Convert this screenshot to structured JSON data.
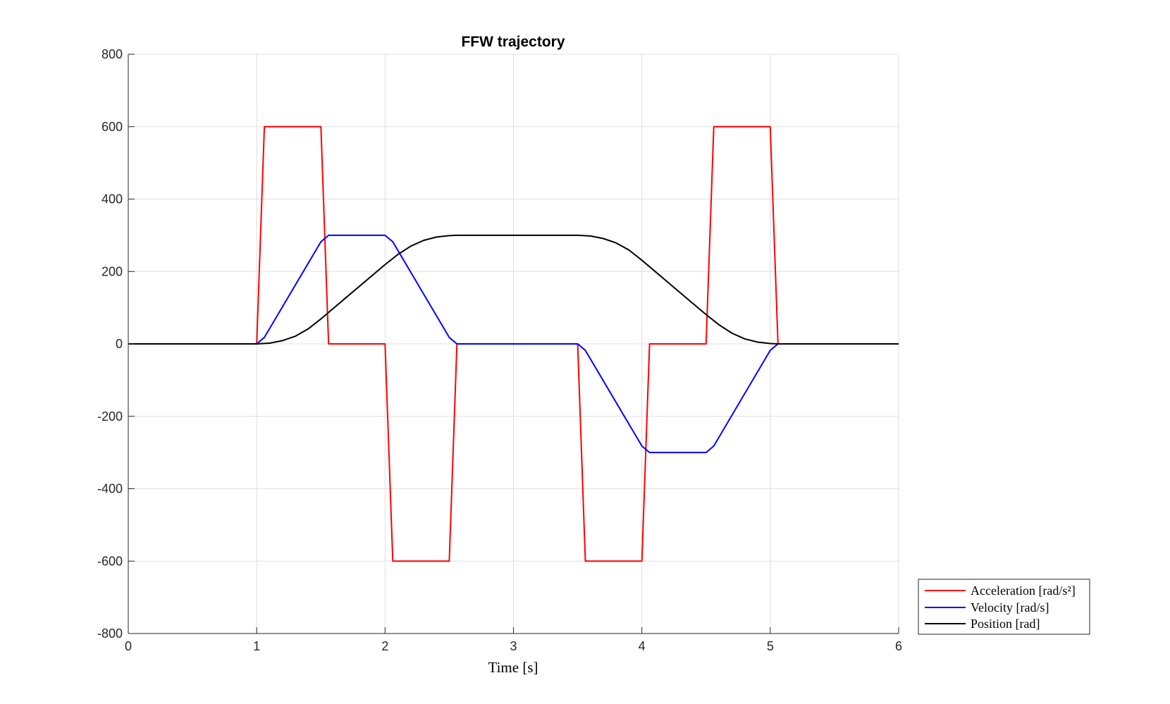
{
  "chart_data": {
    "type": "line",
    "title": "FFW trajectory",
    "xlabel": "Time [s]",
    "ylabel": "",
    "xlim": [
      0,
      6
    ],
    "ylim": [
      -800,
      800
    ],
    "xticks": [
      0,
      1,
      2,
      3,
      4,
      5,
      6
    ],
    "yticks": [
      -800,
      -600,
      -400,
      -200,
      0,
      200,
      400,
      600,
      800
    ],
    "grid": true,
    "legend_position": "bottom-right-outside",
    "series": [
      {
        "key": "acceleration",
        "name": "Acceleration [rad/s²]",
        "color": "#ff0000",
        "x": [
          0,
          1.0,
          1.06,
          1.5,
          1.56,
          2.0,
          2.06,
          2.5,
          2.56,
          3.5,
          3.56,
          4.0,
          4.06,
          4.5,
          4.56,
          5.0,
          5.06,
          6.0
        ],
        "y": [
          0,
          0,
          600,
          600,
          0,
          0,
          -600,
          -600,
          0,
          0,
          -600,
          -600,
          0,
          0,
          600,
          600,
          0,
          0
        ]
      },
      {
        "key": "velocity",
        "name": "Velocity [rad/s]",
        "color": "#0000ff",
        "x": [
          0,
          1.0,
          1.06,
          1.5,
          1.56,
          2.0,
          2.06,
          2.5,
          2.56,
          3.5,
          3.56,
          4.0,
          4.06,
          4.5,
          4.56,
          5.0,
          5.06,
          6.0
        ],
        "y": [
          0,
          0,
          18,
          282,
          300,
          300,
          282,
          18,
          0,
          0,
          -18,
          -282,
          -300,
          -300,
          -282,
          -18,
          0,
          0
        ]
      },
      {
        "key": "position",
        "name": "Position [rad]",
        "color": "#000000",
        "x": [
          0,
          1.0,
          1.1,
          1.2,
          1.3,
          1.4,
          1.5,
          1.6,
          1.7,
          1.8,
          1.9,
          2.0,
          2.1,
          2.2,
          2.3,
          2.4,
          2.5,
          2.56,
          3.5,
          3.6,
          3.7,
          3.8,
          3.9,
          4.0,
          4.1,
          4.2,
          4.3,
          4.4,
          4.5,
          4.6,
          4.7,
          4.8,
          4.9,
          5.0,
          5.06,
          6.0
        ],
        "y": [
          0,
          0,
          2,
          9,
          21,
          41,
          69,
          99,
          129,
          159,
          189,
          219,
          247,
          270,
          286,
          295,
          299,
          300,
          300,
          298,
          291,
          279,
          259,
          231,
          201,
          171,
          141,
          111,
          81,
          53,
          30,
          14,
          5,
          1,
          0,
          0
        ]
      }
    ]
  }
}
